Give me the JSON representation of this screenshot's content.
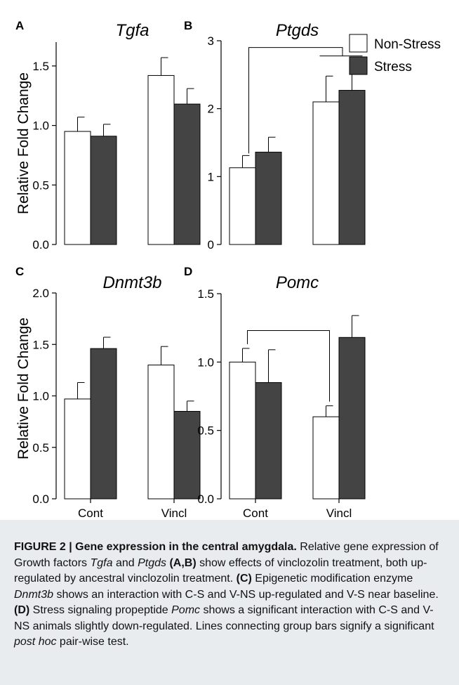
{
  "legend": {
    "items": [
      {
        "label": "Non-Stress",
        "color": "#ffffff"
      },
      {
        "label": "Stress",
        "color": "#444444"
      }
    ]
  },
  "shared_ylabel": "Relative Fold Change",
  "categories": [
    "Cont",
    "Vincl"
  ],
  "chart_data": [
    {
      "type": "bar",
      "panel": "A",
      "title": "Tgfa",
      "categories": [
        "",
        ""
      ],
      "ylim": [
        0,
        1.7
      ],
      "yticks": [
        "0.0",
        "0.5",
        "1.0",
        "1.5"
      ],
      "ytick_values": [
        0,
        0.5,
        1.0,
        1.5
      ],
      "series": [
        {
          "name": "Non-Stress",
          "values": [
            0.95,
            1.42
          ],
          "errors": [
            0.12,
            0.15
          ]
        },
        {
          "name": "Stress",
          "values": [
            0.91,
            1.18
          ],
          "errors": [
            0.1,
            0.13
          ]
        }
      ],
      "significance": []
    },
    {
      "type": "bar",
      "panel": "B",
      "title": "Ptgds",
      "categories": [
        "",
        ""
      ],
      "ylim": [
        0,
        3.0
      ],
      "yticks": [
        "0",
        "1",
        "2",
        "3"
      ],
      "ytick_values": [
        0,
        1,
        2,
        3
      ],
      "series": [
        {
          "name": "Non-Stress",
          "values": [
            1.13,
            2.1
          ],
          "errors": [
            0.18,
            0.38
          ]
        },
        {
          "name": "Stress",
          "values": [
            1.36,
            2.27
          ],
          "errors": [
            0.22,
            0.42
          ]
        }
      ],
      "significance": [
        {
          "from": "Cont Non-Stress",
          "to": "Vincl group",
          "bracket_y": 2.9
        }
      ]
    },
    {
      "type": "bar",
      "panel": "C",
      "title": "Dnmt3b",
      "categories": [
        "Cont",
        "Vincl"
      ],
      "ylim": [
        0,
        2.0
      ],
      "yticks": [
        "0.0",
        "0.5",
        "1.0",
        "1.5",
        "2.0"
      ],
      "ytick_values": [
        0,
        0.5,
        1.0,
        1.5,
        2.0
      ],
      "series": [
        {
          "name": "Non-Stress",
          "values": [
            0.97,
            1.3
          ],
          "errors": [
            0.16,
            0.18
          ]
        },
        {
          "name": "Stress",
          "values": [
            1.46,
            0.85
          ],
          "errors": [
            0.11,
            0.1
          ]
        }
      ],
      "significance": []
    },
    {
      "type": "bar",
      "panel": "D",
      "title": "Pomc",
      "categories": [
        "Cont",
        "Vincl"
      ],
      "ylim": [
        0,
        1.5
      ],
      "yticks": [
        "0.0",
        "0.5",
        "1.0",
        "1.5"
      ],
      "ytick_values": [
        0,
        0.5,
        1.0,
        1.5
      ],
      "series": [
        {
          "name": "Non-Stress",
          "values": [
            1.0,
            0.6
          ],
          "errors": [
            0.1,
            0.08
          ]
        },
        {
          "name": "Stress",
          "values": [
            0.85,
            1.18
          ],
          "errors": [
            0.24,
            0.16
          ]
        }
      ],
      "significance": [
        {
          "from": "Cont Non-Stress",
          "to": "Vincl Non-Stress",
          "bracket_y": 1.23
        }
      ]
    }
  ],
  "caption": {
    "label": "FIGURE 2 | Gene expression in the central amygdala.",
    "text1": " Relative gene expression of Growth factors ",
    "gene1": "Tgfa",
    "text2": " and ",
    "gene2": "Ptgds",
    "ref_ab": "(A,B)",
    "text3": " show effects of vinclozolin treatment, both up-regulated by ancestral vinclozolin treatment. ",
    "ref_c": "(C)",
    "text4": " Epigenetic modification enzyme ",
    "gene3": "Dnmt3b",
    "text5": " shows an interaction with C-S and V-NS up-regulated and V-S near baseline. ",
    "ref_d": "(D)",
    "text6": " Stress signaling propeptide ",
    "gene4": "Pomc",
    "text7": " shows a significant interaction with C-S and V-NS animals slightly down-regulated. Lines connecting group bars signify a significant ",
    "italic_term": "post hoc",
    "text8": " pair-wise test."
  }
}
